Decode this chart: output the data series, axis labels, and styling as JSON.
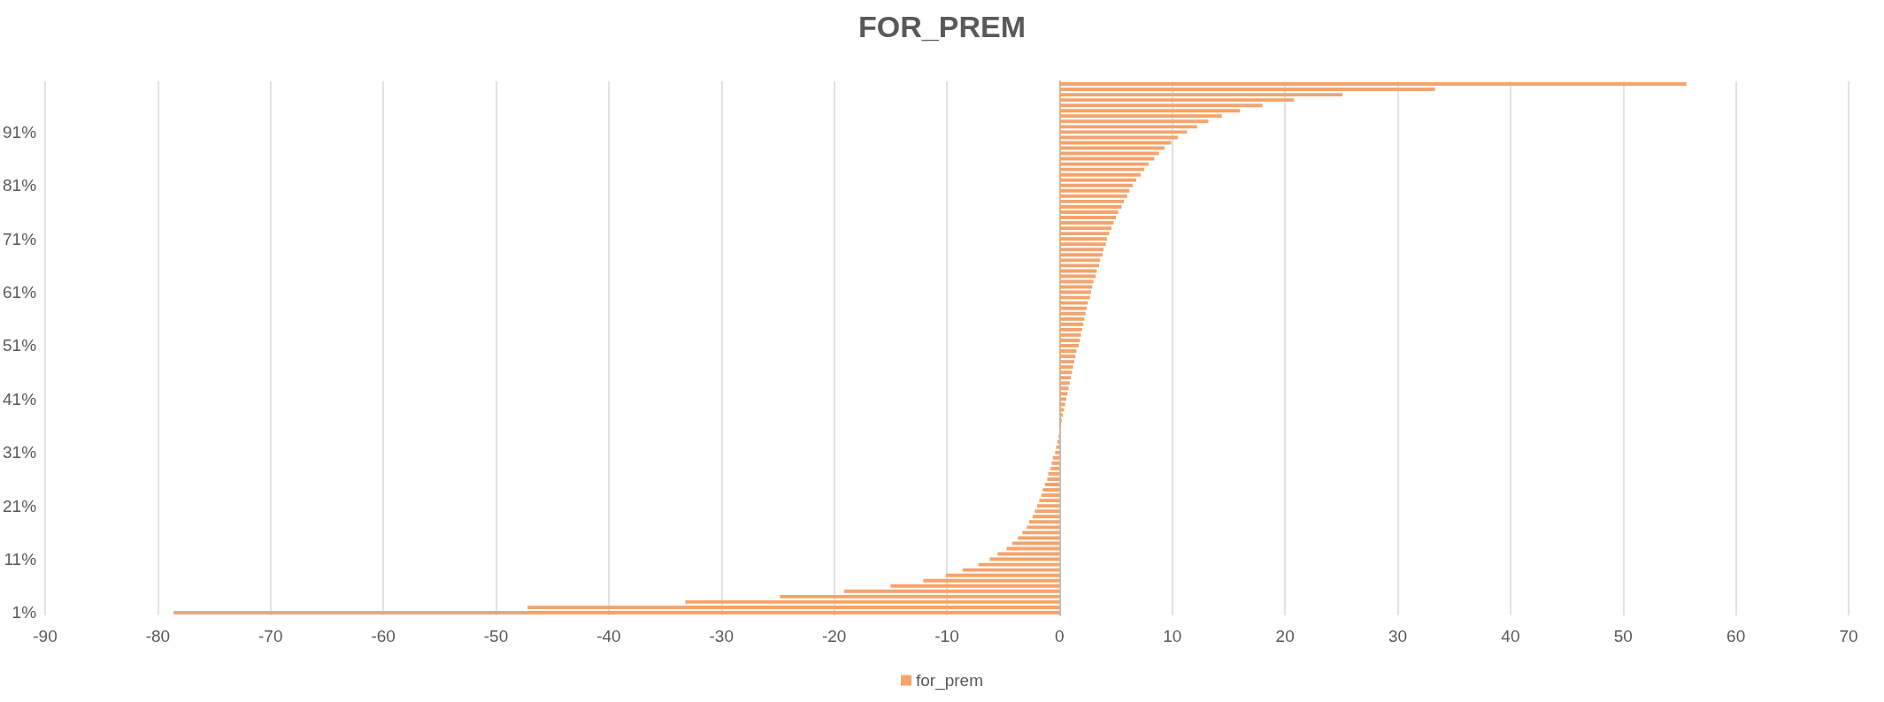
{
  "chart_data": {
    "type": "bar",
    "orientation": "horizontal",
    "title": "FOR_PREM",
    "categories": [
      null,
      null,
      null,
      null,
      null,
      null,
      null,
      null,
      null,
      "91%",
      null,
      null,
      null,
      null,
      null,
      null,
      null,
      null,
      null,
      "81%",
      null,
      null,
      null,
      null,
      null,
      null,
      null,
      null,
      null,
      "71%",
      null,
      null,
      null,
      null,
      null,
      null,
      null,
      null,
      null,
      "61%",
      null,
      null,
      null,
      null,
      null,
      null,
      null,
      null,
      null,
      "51%",
      null,
      null,
      null,
      null,
      null,
      null,
      null,
      null,
      null,
      "41%",
      null,
      null,
      null,
      null,
      null,
      null,
      null,
      null,
      null,
      "31%",
      null,
      null,
      null,
      null,
      null,
      null,
      null,
      null,
      null,
      "21%",
      null,
      null,
      null,
      null,
      null,
      null,
      null,
      null,
      null,
      "11%",
      null,
      null,
      null,
      null,
      null,
      null,
      null,
      null,
      null,
      "1%"
    ],
    "series": [
      {
        "name": "for_prem",
        "color": "#f4a46c",
        "values": [
          55.6,
          33.3,
          25.1,
          20.8,
          18.0,
          16.0,
          14.4,
          13.2,
          12.2,
          11.3,
          10.5,
          9.9,
          9.3,
          8.8,
          8.4,
          7.9,
          7.5,
          7.2,
          6.8,
          6.5,
          6.2,
          6.0,
          5.7,
          5.5,
          5.2,
          5.0,
          4.8,
          4.6,
          4.4,
          4.2,
          4.1,
          3.9,
          3.8,
          3.6,
          3.5,
          3.3,
          3.2,
          3.0,
          2.9,
          2.8,
          2.7,
          2.5,
          2.4,
          2.3,
          2.2,
          2.1,
          2.0,
          1.9,
          1.8,
          1.7,
          1.5,
          1.4,
          1.3,
          1.2,
          1.1,
          1.0,
          0.9,
          0.8,
          0.7,
          0.6,
          0.5,
          0.4,
          0.3,
          0.2,
          0.1,
          0.0,
          -0.1,
          -0.2,
          -0.3,
          -0.4,
          -0.6,
          -0.7,
          -0.8,
          -1.0,
          -1.1,
          -1.3,
          -1.5,
          -1.6,
          -1.8,
          -2.0,
          -2.2,
          -2.4,
          -2.7,
          -2.9,
          -3.3,
          -3.7,
          -4.2,
          -4.7,
          -5.5,
          -6.2,
          -7.2,
          -8.6,
          -10.1,
          -12.1,
          -15.0,
          -19.1,
          -24.8,
          -33.2,
          -47.2,
          -78.6
        ]
      }
    ],
    "xlim": [
      -90,
      70
    ],
    "xticks": [
      -90,
      -80,
      -70,
      -60,
      -50,
      -40,
      -30,
      -20,
      -10,
      0,
      10,
      20,
      30,
      40,
      50,
      60,
      70
    ],
    "grid": "x",
    "legend": "bottom"
  }
}
